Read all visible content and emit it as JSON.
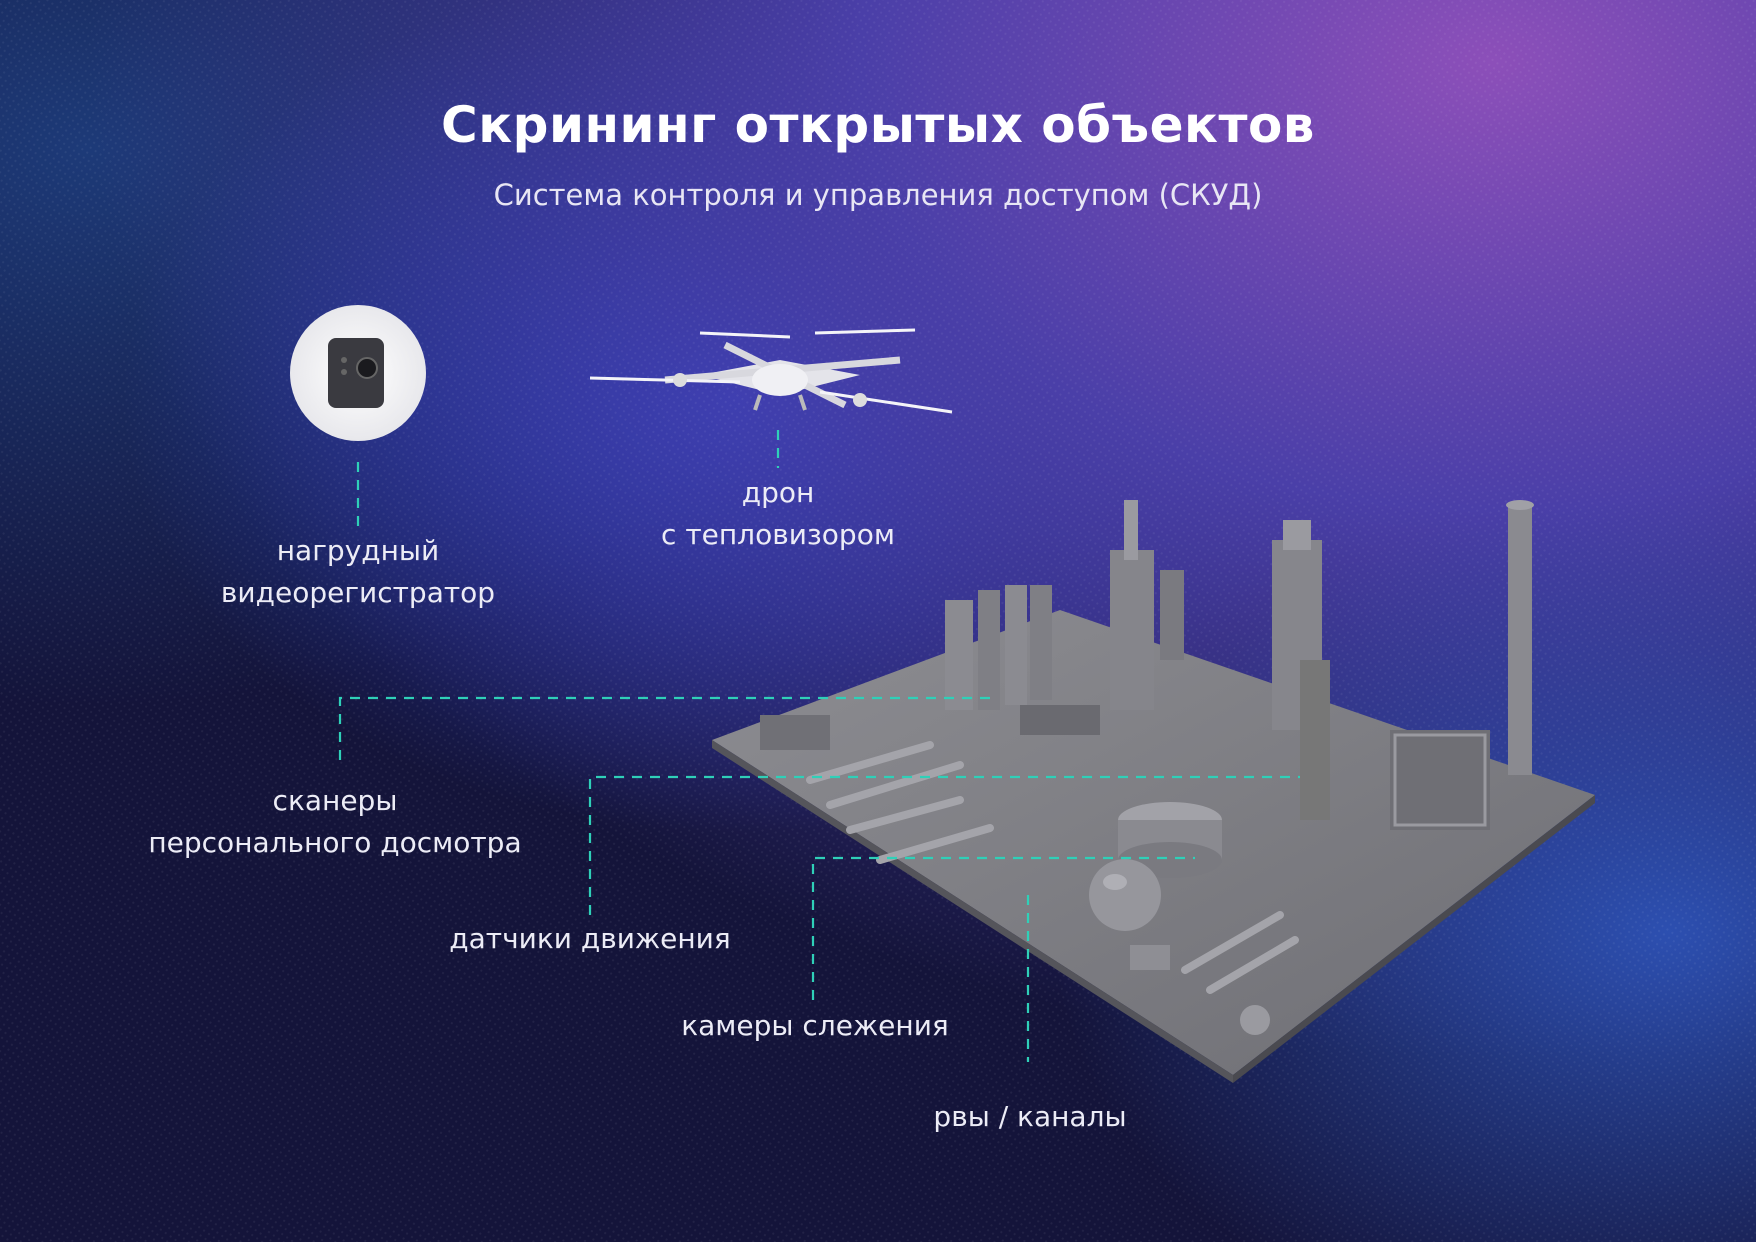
{
  "header": {
    "title": "Скрининг открытых объектов",
    "subtitle": "Система контроля и управления доступом (СКУД)"
  },
  "callouts": {
    "bodycam": {
      "line1": "нагрудный",
      "line2": "видеорегистратор",
      "icon": "body-camera-icon"
    },
    "drone": {
      "line1": "дрон",
      "line2": "с тепловизором",
      "icon": "drone-icon"
    },
    "scanners": {
      "line1": "сканеры",
      "line2": "персонального досмотра"
    },
    "motion": {
      "line1": "датчики движения"
    },
    "cameras": {
      "line1": "камеры слежения"
    },
    "ditches": {
      "line1": "рвы / каналы"
    }
  },
  "colors": {
    "leader_line": "#2fd0b8",
    "background_dark": "#14143a",
    "background_blue": "#2a3aa8",
    "background_purple": "#8a4fb8",
    "model_gray": "#7d7d82"
  }
}
